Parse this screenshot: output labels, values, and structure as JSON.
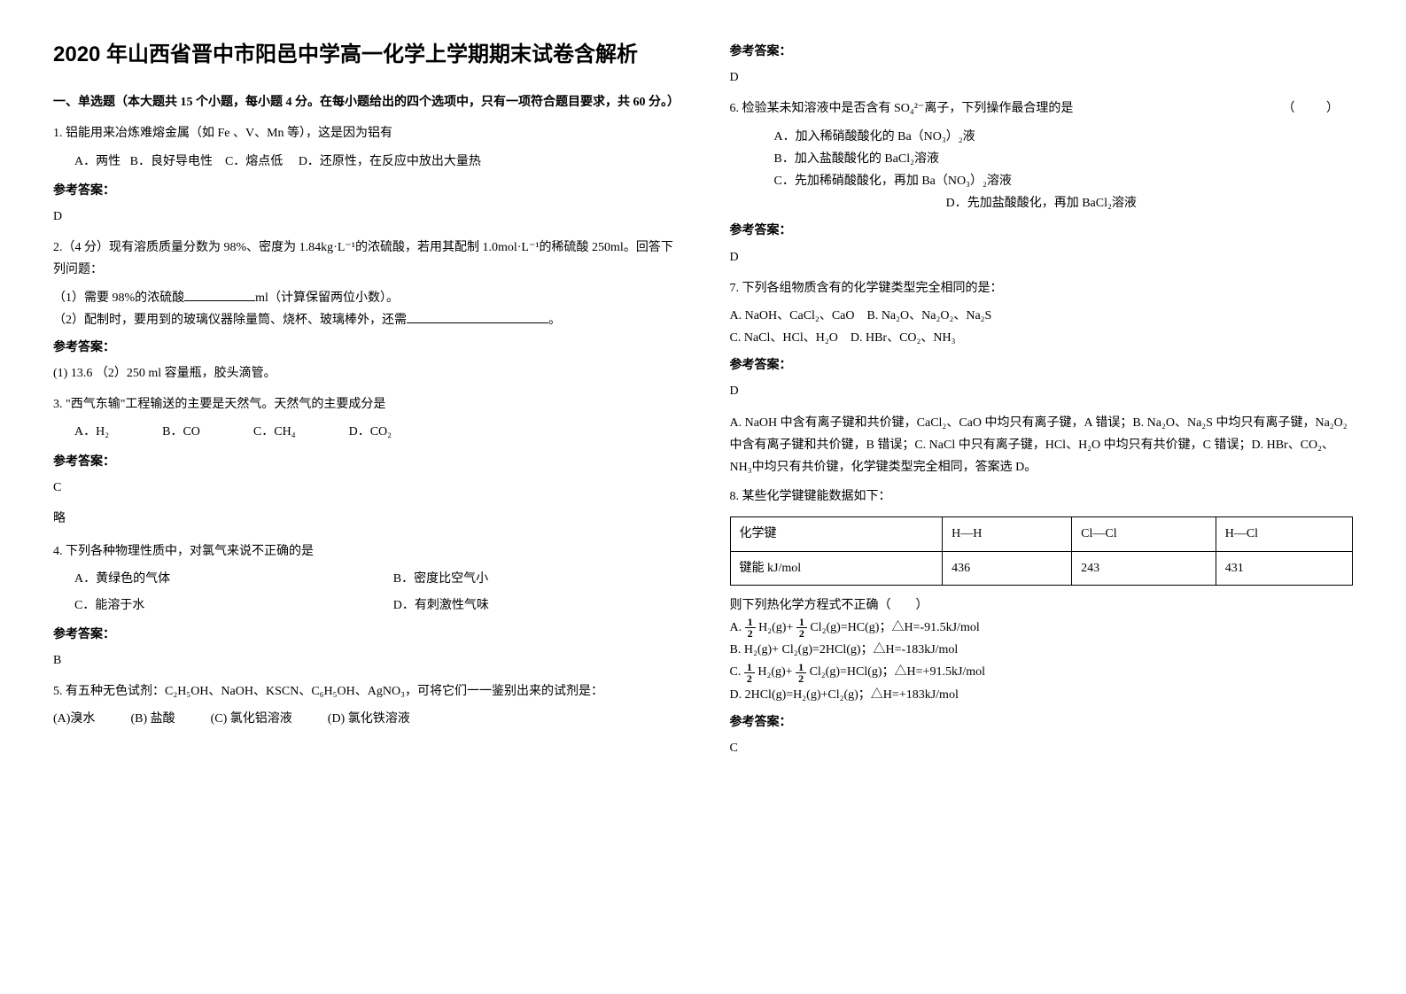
{
  "title": "2020 年山西省晋中市阳邑中学高一化学上学期期末试卷含解析",
  "section1_header": "一、单选题（本大题共 15 个小题，每小题 4 分。在每小题给出的四个选项中，只有一项符合题目要求，共 60 分。）",
  "q1": {
    "text": "1. 铝能用来冶炼难熔金属（如 Fe 、V、Mn 等），这是因为铝有",
    "opt_a": "A．两性",
    "opt_b": "B．良好导电性",
    "opt_c": "C．熔点低",
    "opt_d": "D．还原性，在反应中放出大量热",
    "answer_label": "参考答案：",
    "answer": "D"
  },
  "q2": {
    "text": "2.（4 分）现有溶质质量分数为 98%、密度为 1.84kg·L⁻¹的浓硫酸，若用其配制 1.0mol·L⁻¹的稀硫酸 250ml。回答下列问题：",
    "sub1_pre": "（1）需要 98%的浓硫酸",
    "sub1_post": "ml（计算保留两位小数）。",
    "sub2_pre": "（2）配制时，要用到的玻璃仪器除量筒、烧杯、玻璃棒外，还需",
    "sub2_post": "。",
    "answer_label": "参考答案：",
    "answer": "(1) 13.6            （2）250 ml 容量瓶，胶头滴管。"
  },
  "q3": {
    "text": "3. \"西气东输\"工程输送的主要是天然气。天然气的主要成分是",
    "opt_a": "A．H₂",
    "opt_b": "B．CO",
    "opt_c": "C．CH₄",
    "opt_d": "D．CO₂",
    "answer_label": "参考答案：",
    "answer": "C",
    "explanation": "略"
  },
  "q4": {
    "text": "4. 下列各种物理性质中，对氯气来说不正确的是",
    "opt_a": "A．黄绿色的气体",
    "opt_b": "B．密度比空气小",
    "opt_c": "C．能溶于水",
    "opt_d": "D．有刺激性气味",
    "answer_label": "参考答案：",
    "answer": "B"
  },
  "q5": {
    "text": "5. 有五种无色试剂：C₂H₅OH、NaOH、KSCN、C₆H₅OH、AgNO₃，可将它们一一鉴别出来的试剂是：",
    "opt_a": "(A)溴水",
    "opt_b": "(B) 盐酸",
    "opt_c": "(C) 氯化铝溶液",
    "opt_d": "(D) 氯化铁溶液",
    "answer_label": "参考答案：",
    "answer": "D"
  },
  "q6": {
    "text": "6. 检验某未知溶液中是否含有 SO₄²⁻离子，下列操作最合理的是",
    "paren": "（    ）",
    "opt_a": "A．加入稀硝酸酸化的 Ba（NO₃）₂液",
    "opt_b": "B．加入盐酸酸化的 BaCl₂溶液",
    "opt_c": "C．先加稀硝酸酸化，再加 Ba（NO₃）₂溶液",
    "opt_d": "D．先加盐酸酸化，再加 BaCl₂溶液",
    "answer_label": "参考答案：",
    "answer": "D"
  },
  "q7": {
    "text": "7. 下列各组物质含有的化学键类型完全相同的是：",
    "opt_a": "A. NaOH、CaCl₂、CaO",
    "opt_b": "B. Na₂O、Na₂O₂、Na₂S",
    "opt_c": "C. NaCl、HCl、H₂O",
    "opt_d": "D. HBr、CO₂、NH₃",
    "answer_label": "参考答案：",
    "answer": "D",
    "explanation": "A. NaOH 中含有离子键和共价键，CaCl₂、CaO 中均只有离子键，A 错误；B. Na₂O、Na₂S 中均只有离子键，Na₂O₂中含有离子键和共价键，B 错误；C. NaCl 中只有离子键，HCl、H₂O 中均只有共价键，C 错误；D. HBr、CO₂、NH₃中均只有共价键，化学键类型完全相同，答案选 D。"
  },
  "q8": {
    "text": "8. 某些化学键键能数据如下：",
    "table": {
      "header": [
        "化学键",
        "H—H",
        "Cl—Cl",
        "H—Cl"
      ],
      "row_label": "键能 kJ/mol",
      "values": [
        "436",
        "243",
        "431"
      ]
    },
    "subtext": "则下列热化学方程式不正确（　　）",
    "opt_a_post": " H₂(g)+ ",
    "opt_a_post2": " Cl₂(g)=HC(g)；△H=-91.5kJ/mol",
    "opt_b": "B. H₂(g)+ Cl₂(g)=2HCl(g)；△H=-183kJ/mol",
    "opt_c_post": " H₂(g)+ ",
    "opt_c_post2": " Cl₂(g)=HCl(g)；△H=+91.5kJ/mol",
    "opt_d": "D. 2HCl(g)=H₂(g)+Cl₂(g)；△H=+183kJ/mol",
    "answer_label": "参考答案：",
    "answer": "C"
  }
}
